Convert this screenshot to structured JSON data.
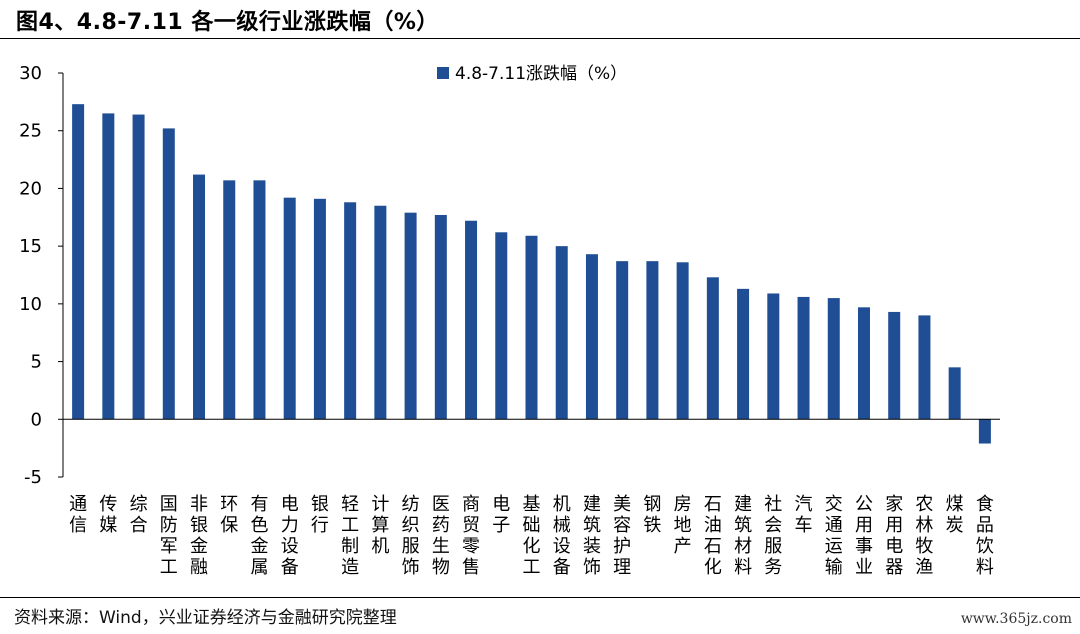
{
  "title": "图4、4.8-7.11 各一级行业涨跌幅（%）",
  "source": "资料来源：Wind，兴业证券经济与金融研究院整理",
  "watermark": "www.365jz.com",
  "colors": {
    "bar": "#1F4E94",
    "axis": "#000000"
  },
  "chart_data": {
    "type": "bar",
    "categories": [
      "通信",
      "传媒",
      "综合",
      "国防军工",
      "非银金融",
      "环保",
      "有色金属",
      "电力设备",
      "银行",
      "轻工制造",
      "计算机",
      "纺织服饰",
      "医药生物",
      "商贸零售",
      "电子",
      "基础化工",
      "机械设备",
      "建筑装饰",
      "美容护理",
      "钢铁",
      "房地产",
      "石油石化",
      "建筑材料",
      "社会服务",
      "汽车",
      "交通运输",
      "公用事业",
      "家用电器",
      "农林牧渔",
      "煤炭",
      "食品饮料"
    ],
    "series": [
      {
        "name": "4.8-7.11涨跌幅（%）",
        "values": [
          27.3,
          26.5,
          26.4,
          25.2,
          21.2,
          20.7,
          20.7,
          19.2,
          19.1,
          18.8,
          18.5,
          17.9,
          17.7,
          17.2,
          16.2,
          15.9,
          15.0,
          14.3,
          13.7,
          13.7,
          13.6,
          12.3,
          11.3,
          10.9,
          10.6,
          10.5,
          9.7,
          9.3,
          9.0,
          4.5,
          -2.1
        ]
      }
    ],
    "ylim": [
      -5,
      30
    ],
    "yticks": [
      -5,
      0,
      5,
      10,
      15,
      20,
      25,
      30
    ],
    "legend_position": "top-center",
    "grid": false
  }
}
